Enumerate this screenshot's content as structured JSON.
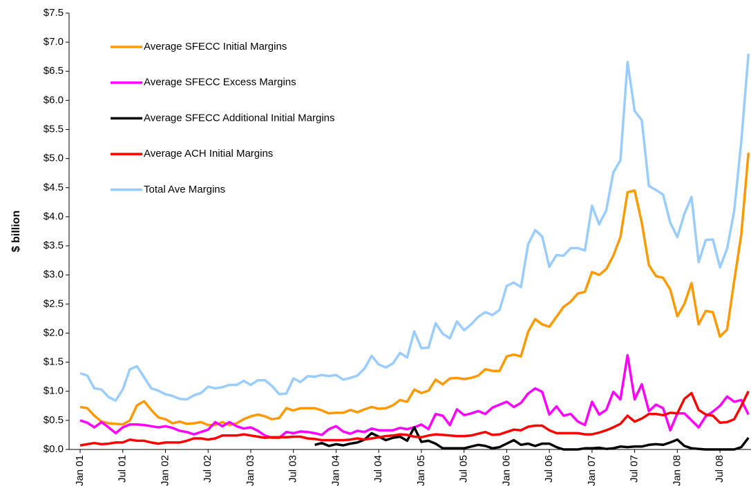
{
  "chart_data": {
    "type": "line",
    "y_label": "$ billion",
    "categories": [
      "Jan 01",
      null,
      null,
      null,
      null,
      null,
      "Jul 01",
      null,
      null,
      null,
      null,
      null,
      "Jan 02",
      null,
      null,
      null,
      null,
      null,
      "Jul 02",
      null,
      null,
      null,
      null,
      null,
      "Jan 03",
      null,
      null,
      null,
      null,
      null,
      "Jul 03",
      null,
      null,
      null,
      null,
      null,
      "Jan 04",
      null,
      null,
      null,
      null,
      null,
      "Jul 04",
      null,
      null,
      null,
      null,
      null,
      "Jan 05",
      null,
      null,
      null,
      null,
      null,
      "Jul 05",
      null,
      null,
      null,
      null,
      null,
      "Jan 06",
      null,
      null,
      null,
      null,
      null,
      "Jul 06",
      null,
      null,
      null,
      null,
      null,
      "Jan 07",
      null,
      null,
      null,
      null,
      null,
      "Jul 07",
      null,
      null,
      null,
      null,
      null,
      "Jan 08",
      null,
      null,
      null,
      null,
      null,
      "Jul 08",
      null,
      null,
      null,
      null
    ],
    "ylim": [
      0,
      7.5
    ],
    "yticks": [
      {
        "value": 0,
        "label": "$0.0"
      },
      {
        "value": 0.5,
        "label": "$0.5"
      },
      {
        "value": 1,
        "label": "$1.0"
      },
      {
        "value": 1.5,
        "label": "$1.5"
      },
      {
        "value": 2,
        "label": "$2.0"
      },
      {
        "value": 2.5,
        "label": "$2.5"
      },
      {
        "value": 3,
        "label": "$3.0"
      },
      {
        "value": 3.5,
        "label": "$3.5"
      },
      {
        "value": 4,
        "label": "$4.0"
      },
      {
        "value": 4.5,
        "label": "$4.5"
      },
      {
        "value": 5,
        "label": "$5.0"
      },
      {
        "value": 5.5,
        "label": "$5.5"
      },
      {
        "value": 6,
        "label": "$6.0"
      },
      {
        "value": 6.5,
        "label": "$6.5"
      },
      {
        "value": 7,
        "label": "$7.0"
      },
      {
        "value": 7.5,
        "label": "$7.5"
      }
    ],
    "legend": "upper left",
    "series": [
      {
        "name": "Average SFECC Initial Margins",
        "color": "#FF9900",
        "values": [
          0.73,
          0.71,
          0.58,
          0.48,
          0.45,
          0.44,
          0.43,
          0.5,
          0.76,
          0.83,
          0.68,
          0.55,
          0.52,
          0.45,
          0.48,
          0.44,
          0.45,
          0.47,
          0.42,
          0.42,
          0.47,
          0.42,
          0.45,
          0.52,
          0.57,
          0.6,
          0.57,
          0.52,
          0.54,
          0.71,
          0.67,
          0.71,
          0.71,
          0.71,
          0.67,
          0.62,
          0.63,
          0.63,
          0.68,
          0.64,
          0.69,
          0.73,
          0.7,
          0.71,
          0.76,
          0.85,
          0.82,
          1.03,
          0.97,
          1.01,
          1.2,
          1.12,
          1.22,
          1.23,
          1.21,
          1.23,
          1.27,
          1.38,
          1.35,
          1.35,
          1.6,
          1.63,
          1.6,
          2.02,
          2.24,
          2.15,
          2.11,
          2.28,
          2.45,
          2.54,
          2.68,
          2.71,
          3.05,
          3.0,
          3.1,
          3.33,
          3.65,
          4.42,
          4.45,
          3.9,
          3.17,
          2.98,
          2.95,
          2.75,
          2.29,
          2.5,
          2.86,
          2.15,
          2.38,
          2.36,
          1.94,
          2.06,
          2.9,
          3.7,
          5.1
        ]
      },
      {
        "name": "Average SFECC Excess Margins",
        "color": "#FF00FF",
        "values": [
          0.5,
          0.46,
          0.38,
          0.47,
          0.38,
          0.28,
          0.38,
          0.43,
          0.43,
          0.42,
          0.4,
          0.38,
          0.4,
          0.37,
          0.32,
          0.3,
          0.26,
          0.3,
          0.34,
          0.47,
          0.4,
          0.47,
          0.4,
          0.36,
          0.38,
          0.32,
          0.24,
          0.2,
          0.2,
          0.3,
          0.28,
          0.31,
          0.3,
          0.28,
          0.25,
          0.35,
          0.4,
          0.31,
          0.27,
          0.32,
          0.3,
          0.36,
          0.33,
          0.33,
          0.33,
          0.37,
          0.35,
          0.38,
          0.43,
          0.35,
          0.61,
          0.58,
          0.42,
          0.69,
          0.59,
          0.62,
          0.66,
          0.61,
          0.72,
          0.77,
          0.82,
          0.73,
          0.8,
          0.96,
          1.05,
          0.99,
          0.6,
          0.74,
          0.58,
          0.61,
          0.48,
          0.42,
          0.82,
          0.6,
          0.68,
          0.99,
          0.86,
          1.62,
          0.86,
          1.12,
          0.66,
          0.77,
          0.71,
          0.33,
          0.62,
          0.62,
          0.5,
          0.38,
          0.57,
          0.65,
          0.75,
          0.91,
          0.82,
          0.85,
          0.6
        ]
      },
      {
        "name": "Average SFECC Additional Initial Margins",
        "color": "#000000",
        "values": [
          null,
          null,
          null,
          null,
          null,
          null,
          null,
          null,
          null,
          null,
          null,
          null,
          null,
          null,
          null,
          null,
          null,
          null,
          null,
          null,
          null,
          null,
          null,
          null,
          null,
          null,
          null,
          null,
          null,
          null,
          null,
          null,
          null,
          0.08,
          0.11,
          0.06,
          0.09,
          0.07,
          0.1,
          0.12,
          0.17,
          0.28,
          0.22,
          0.16,
          0.2,
          0.22,
          0.15,
          0.38,
          0.13,
          0.15,
          0.1,
          0.02,
          0.02,
          0.02,
          0.02,
          0.05,
          0.08,
          0.06,
          0.02,
          0.04,
          0.1,
          0.16,
          0.08,
          0.1,
          0.06,
          0.1,
          0.1,
          0.04,
          0.0,
          0.0,
          0.0,
          0.02,
          0.02,
          0.03,
          0.01,
          0.02,
          0.05,
          0.04,
          0.05,
          0.05,
          0.08,
          0.09,
          0.08,
          0.12,
          0.17,
          0.06,
          0.02,
          0.01,
          0.0,
          0.0,
          0.0,
          0.0,
          0.0,
          0.04,
          0.2
        ]
      },
      {
        "name": "Average ACH Initial Margins",
        "color": "#FF0000",
        "values": [
          0.07,
          0.09,
          0.11,
          0.09,
          0.1,
          0.12,
          0.12,
          0.17,
          0.15,
          0.15,
          0.12,
          0.1,
          0.12,
          0.12,
          0.12,
          0.15,
          0.19,
          0.19,
          0.17,
          0.19,
          0.24,
          0.24,
          0.24,
          0.26,
          0.24,
          0.22,
          0.2,
          0.21,
          0.21,
          0.21,
          0.22,
          0.22,
          0.19,
          0.18,
          0.16,
          0.16,
          0.16,
          0.16,
          0.17,
          0.19,
          0.17,
          0.19,
          0.21,
          0.23,
          0.24,
          0.26,
          0.25,
          0.22,
          0.21,
          0.24,
          0.26,
          0.25,
          0.24,
          0.23,
          0.23,
          0.24,
          0.27,
          0.3,
          0.25,
          0.26,
          0.3,
          0.34,
          0.33,
          0.39,
          0.41,
          0.41,
          0.33,
          0.28,
          0.28,
          0.28,
          0.28,
          0.26,
          0.26,
          0.29,
          0.33,
          0.38,
          0.44,
          0.58,
          0.48,
          0.53,
          0.61,
          0.61,
          0.59,
          0.63,
          0.62,
          0.87,
          0.97,
          0.68,
          0.6,
          0.58,
          0.46,
          0.47,
          0.52,
          0.75,
          1.0
        ]
      },
      {
        "name": "Total Ave Margins",
        "color": "#99CCFF",
        "values": [
          1.31,
          1.27,
          1.05,
          1.03,
          0.9,
          0.84,
          1.03,
          1.38,
          1.43,
          1.24,
          1.05,
          1.01,
          0.95,
          0.92,
          0.87,
          0.86,
          0.93,
          0.97,
          1.08,
          1.05,
          1.07,
          1.11,
          1.11,
          1.18,
          1.11,
          1.19,
          1.19,
          1.09,
          0.95,
          0.96,
          1.22,
          1.16,
          1.26,
          1.25,
          1.28,
          1.26,
          1.28,
          1.2,
          1.23,
          1.27,
          1.39,
          1.61,
          1.46,
          1.41,
          1.48,
          1.66,
          1.58,
          2.03,
          1.74,
          1.75,
          2.17,
          1.99,
          1.91,
          2.2,
          2.05,
          2.15,
          2.28,
          2.36,
          2.31,
          2.4,
          2.81,
          2.87,
          2.79,
          3.52,
          3.77,
          3.66,
          3.14,
          3.34,
          3.33,
          3.46,
          3.46,
          3.42,
          4.19,
          3.87,
          4.11,
          4.76,
          4.97,
          6.66,
          5.82,
          5.66,
          4.53,
          4.46,
          4.38,
          3.9,
          3.65,
          4.05,
          4.34,
          3.22,
          3.6,
          3.61,
          3.13,
          3.45,
          4.1,
          5.3,
          6.8
        ]
      }
    ]
  }
}
